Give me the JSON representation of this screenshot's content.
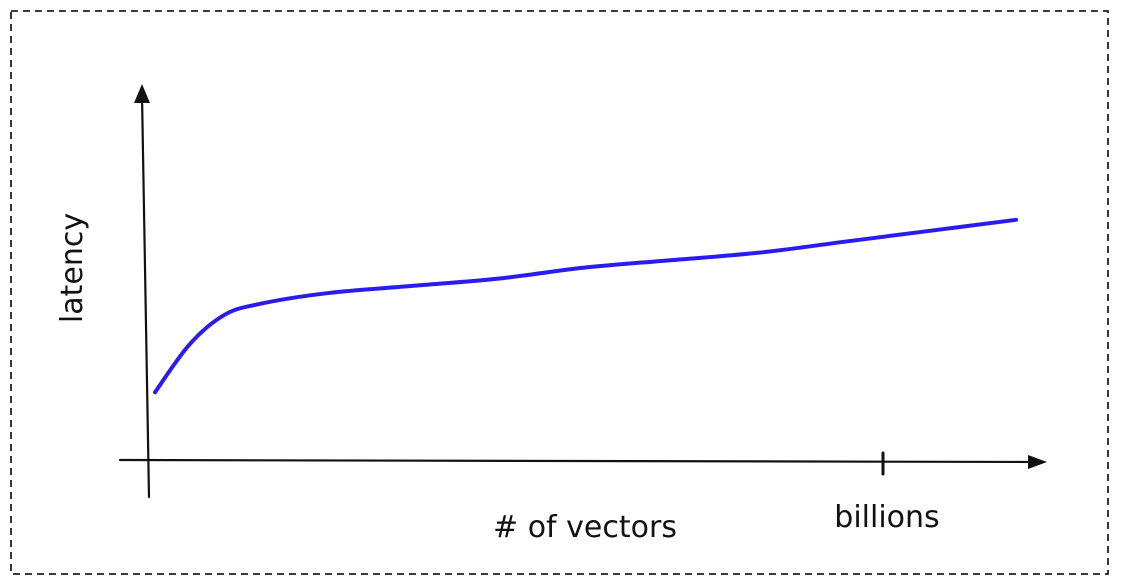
{
  "chart_data": {
    "type": "line",
    "title": "",
    "xlabel": "# of vectors",
    "ylabel": "latency",
    "x_tick_labels": [
      "billions"
    ],
    "grid": false,
    "legend": "none",
    "xlim": [
      0,
      1
    ],
    "ylim": [
      0,
      1
    ],
    "series": [
      {
        "color": "#2a1bf0",
        "x": [
          0.0,
          0.04,
          0.08,
          0.12,
          0.2,
          0.3,
          0.4,
          0.5,
          0.6,
          0.7,
          0.8,
          0.9,
          1.0
        ],
        "y": [
          0.19,
          0.32,
          0.4,
          0.43,
          0.46,
          0.48,
          0.5,
          0.53,
          0.55,
          0.57,
          0.6,
          0.63,
          0.66
        ]
      }
    ]
  },
  "colors": {
    "line": "#2a1bf0",
    "ink": "#111111",
    "frame": "#222222"
  }
}
